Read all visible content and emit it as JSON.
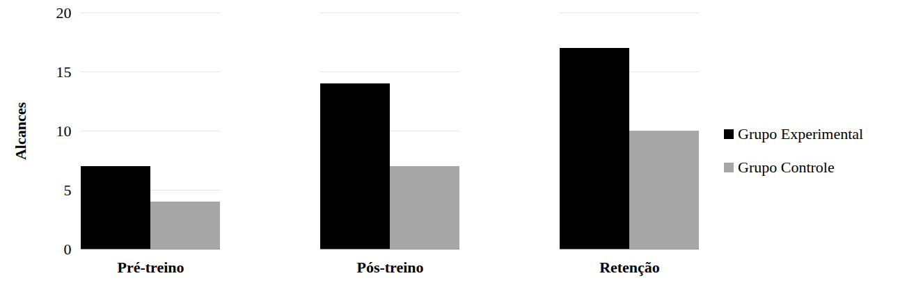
{
  "chart_data": {
    "type": "bar",
    "categories": [
      "Pré-treino",
      "Pós-treino",
      "Retenção"
    ],
    "series": [
      {
        "name": "Grupo Experimental",
        "color": "#000000",
        "values": [
          7,
          14,
          17
        ]
      },
      {
        "name": "Grupo Controle",
        "color": "#a6a6a6",
        "values": [
          4,
          7,
          10
        ]
      }
    ],
    "y_label": "Alcances",
    "ylim": [
      0,
      20
    ],
    "yticks": [
      0,
      5,
      10,
      15,
      20
    ],
    "grid": true,
    "legend": "right"
  }
}
